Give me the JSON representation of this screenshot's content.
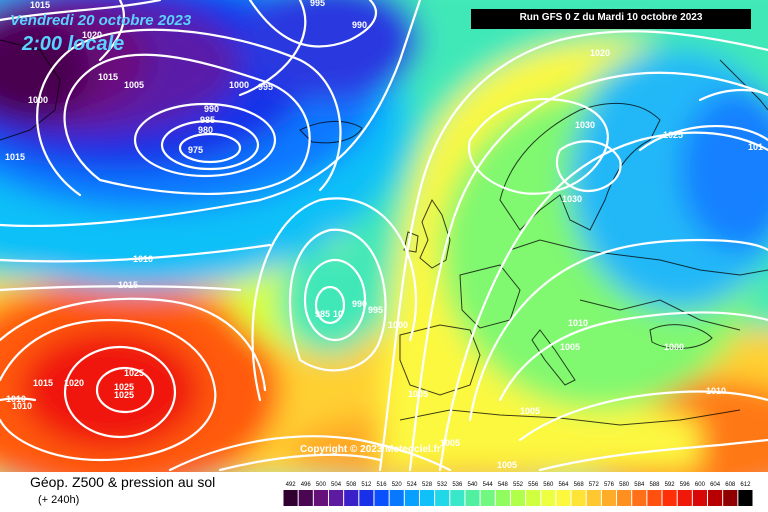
{
  "header": {
    "valid_date": "Vendredi 20 octobre 2023",
    "local_time": "2:00 locale",
    "run_info": "Run GFS 0 Z du Mardi 10 octobre 2023"
  },
  "copyright": "Copyright © 2023 Meteociel.fr",
  "footer": {
    "product_title": "Géop. Z500 & pression au sol",
    "lead_time": "(+ 240h)"
  },
  "legend": {
    "values": [
      "492",
      "496",
      "500",
      "504",
      "508",
      "512",
      "516",
      "520",
      "524",
      "528",
      "532",
      "536",
      "540",
      "544",
      "548",
      "552",
      "556",
      "560",
      "564",
      "568",
      "572",
      "576",
      "580",
      "584",
      "588",
      "592",
      "596",
      "600",
      "604",
      "608",
      "612"
    ],
    "colors": [
      "#300030",
      "#4a0650",
      "#66107a",
      "#5e1aa0",
      "#3a20c8",
      "#1830e8",
      "#0a50ff",
      "#0878ff",
      "#08a0ff",
      "#10c0f8",
      "#20d8e8",
      "#38e8c8",
      "#50f0a0",
      "#70f880",
      "#90fc60",
      "#b0ff48",
      "#d0ff40",
      "#ecff40",
      "#fcf840",
      "#ffe438",
      "#ffc830",
      "#ffac28",
      "#ff9020",
      "#ff7018",
      "#ff5010",
      "#ff3008",
      "#f01808",
      "#d80808",
      "#b80000",
      "#900000",
      "#000000"
    ]
  },
  "pressure_labels": [
    {
      "text": "1015"
    },
    {
      "text": "1020"
    },
    {
      "text": "1015"
    },
    {
      "text": "1005"
    },
    {
      "text": "1000"
    },
    {
      "text": "990"
    },
    {
      "text": "985"
    },
    {
      "text": "980"
    },
    {
      "text": "975"
    },
    {
      "text": "1000"
    },
    {
      "text": "995"
    },
    {
      "text": "995"
    },
    {
      "text": "990"
    },
    {
      "text": "1020"
    },
    {
      "text": "1030"
    },
    {
      "text": "1025"
    },
    {
      "text": "1030"
    },
    {
      "text": "1015"
    },
    {
      "text": "1010"
    },
    {
      "text": "1015"
    },
    {
      "text": "990"
    },
    {
      "text": "985"
    },
    {
      "text": "10"
    },
    {
      "text": "995"
    },
    {
      "text": "1000"
    },
    {
      "text": "1010"
    },
    {
      "text": "1005"
    },
    {
      "text": "1000"
    },
    {
      "text": "1010"
    },
    {
      "text": "1005"
    },
    {
      "text": "1005"
    },
    {
      "text": "1005"
    },
    {
      "text": "1005"
    },
    {
      "text": "1015"
    },
    {
      "text": "1020"
    },
    {
      "text": "1025"
    },
    {
      "text": "1025"
    },
    {
      "text": "1025"
    },
    {
      "text": "1010"
    },
    {
      "text": "1010"
    },
    {
      "text": "101"
    }
  ]
}
